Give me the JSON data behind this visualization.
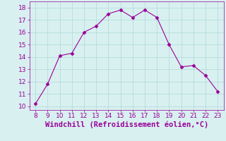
{
  "x": [
    8,
    9,
    10,
    11,
    12,
    13,
    14,
    15,
    16,
    17,
    18,
    19,
    20,
    21,
    22,
    23
  ],
  "y": [
    10.2,
    11.8,
    14.1,
    14.3,
    16.0,
    16.5,
    17.5,
    17.8,
    17.2,
    17.8,
    17.2,
    15.0,
    13.2,
    13.3,
    12.5,
    11.2
  ],
  "line_color": "#990099",
  "marker": "D",
  "marker_size": 2.5,
  "background_color": "#d8f0f0",
  "grid_color": "#b0d8d8",
  "xlabel": "Windchill (Refroidissement éolien,°C)",
  "xlabel_color": "#990099",
  "xlabel_fontsize": 7.5,
  "xlim": [
    7.5,
    23.5
  ],
  "ylim": [
    9.7,
    18.5
  ],
  "yticks": [
    10,
    11,
    12,
    13,
    14,
    15,
    16,
    17,
    18
  ],
  "xticks": [
    8,
    9,
    10,
    11,
    12,
    13,
    14,
    15,
    16,
    17,
    18,
    19,
    20,
    21,
    22,
    23
  ],
  "tick_color": "#990099",
  "tick_fontsize": 6.5,
  "spine_color": "#990099"
}
